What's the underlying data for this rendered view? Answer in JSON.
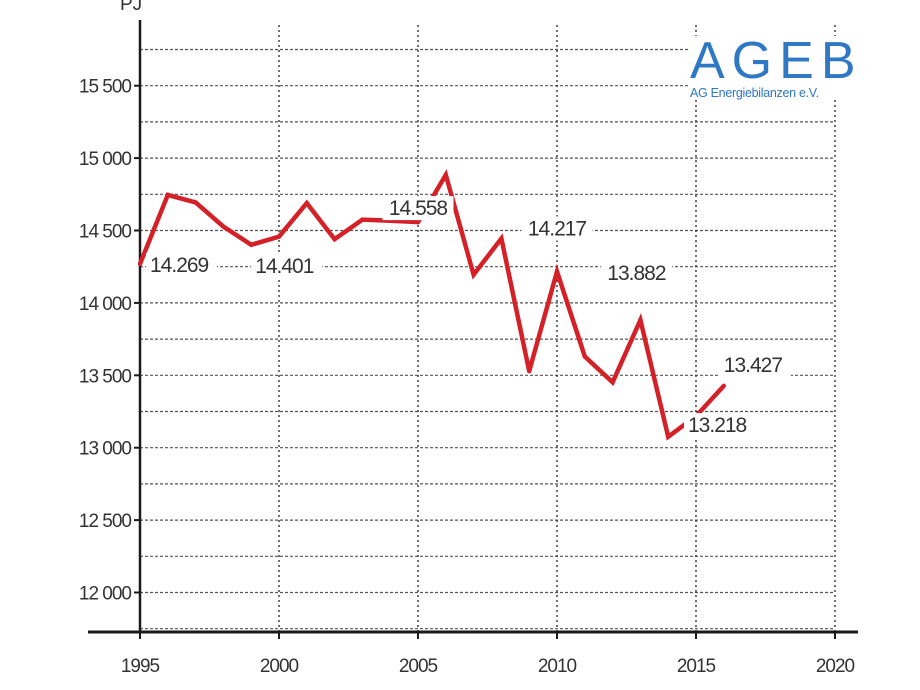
{
  "chart_data": {
    "type": "line",
    "ylabel": "PJ",
    "ylim": [
      11750,
      15750
    ],
    "xlim": [
      1995,
      2020
    ],
    "x_ticks": [
      1995,
      2000,
      2005,
      2010,
      2015,
      2020
    ],
    "x_tick_labels": [
      "1995",
      "2000",
      "2005",
      "2010",
      "2015",
      "2020"
    ],
    "y_ticks": [
      12000,
      12500,
      13000,
      13500,
      14000,
      14500,
      15000,
      15500
    ],
    "y_tick_labels": [
      "12 000",
      "12 500",
      "13 000",
      "13 500",
      "14 000",
      "14 500",
      "15 000",
      "15 500"
    ],
    "grid": true,
    "series_color": "#d42128",
    "x": [
      1995,
      1996,
      1997,
      1998,
      1999,
      2000,
      2001,
      2002,
      2003,
      2004,
      2005,
      2006,
      2007,
      2008,
      2009,
      2010,
      2011,
      2012,
      2013,
      2014,
      2015,
      2016
    ],
    "values": [
      14269,
      14746,
      14694,
      14527,
      14401,
      14458,
      14689,
      14440,
      14575,
      14568,
      14558,
      14885,
      14195,
      14445,
      13528,
      14217,
      13630,
      13452,
      13882,
      13075,
      13218,
      13427
    ],
    "data_labels": [
      {
        "x": 1995,
        "text": "14.269"
      },
      {
        "x": 1999,
        "text": "14.401"
      },
      {
        "x": 2005,
        "text": "14.558"
      },
      {
        "x": 2010,
        "text": "14.217"
      },
      {
        "x": 2013,
        "text": "13.882"
      },
      {
        "x": 2015,
        "text": "13.218"
      },
      {
        "x": 2016,
        "text": "13.427"
      }
    ]
  },
  "logo": {
    "main": "AGEB",
    "sub": "AG Energiebilanzen e.V.",
    "color": "#2f78c4"
  }
}
